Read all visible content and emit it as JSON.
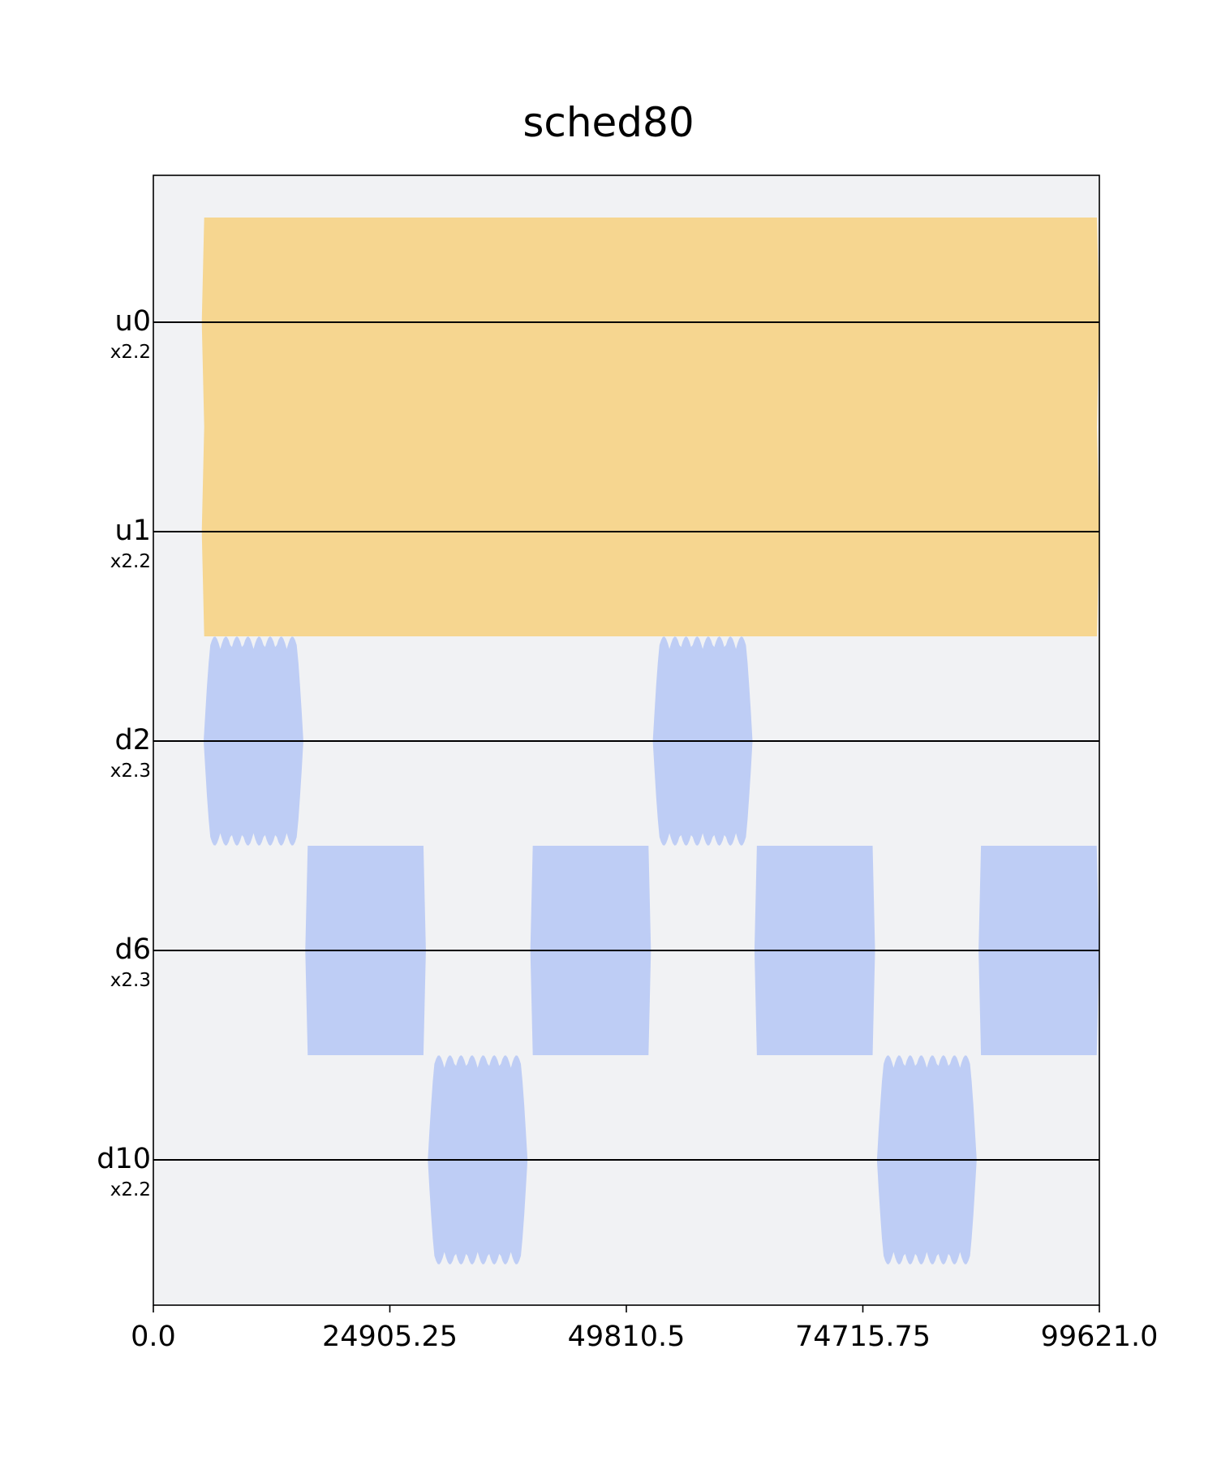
{
  "chart_data": {
    "type": "pulse_schedule",
    "title": "sched80",
    "xlim": [
      0.0,
      99621.0
    ],
    "x_ticks": [
      "0.0",
      "24905.25",
      "49810.5",
      "74715.75",
      "99621.0"
    ],
    "channels": [
      {
        "name": "u0",
        "scale": "x2.2",
        "kind": "control"
      },
      {
        "name": "u1",
        "scale": "x2.2",
        "kind": "control"
      },
      {
        "name": "d2",
        "scale": "x2.3",
        "kind": "drive"
      },
      {
        "name": "d6",
        "scale": "x2.3",
        "kind": "drive"
      },
      {
        "name": "d10",
        "scale": "x2.2",
        "kind": "drive"
      }
    ],
    "pulses": [
      {
        "channel": "u0",
        "start": 5100,
        "end": 99621,
        "shape": "flat",
        "amplitude": 1.0
      },
      {
        "channel": "u1",
        "start": 5100,
        "end": 99621,
        "shape": "flat",
        "amplitude": 1.0
      },
      {
        "channel": "d2",
        "start": 5300,
        "end": 15800,
        "shape": "oscillating",
        "amplitude": 1.0
      },
      {
        "channel": "d2",
        "start": 52600,
        "end": 63100,
        "shape": "oscillating",
        "amplitude": 1.0
      },
      {
        "channel": "d6",
        "start": 16000,
        "end": 28700,
        "shape": "flat",
        "amplitude": 1.0
      },
      {
        "channel": "d6",
        "start": 39700,
        "end": 52400,
        "shape": "flat",
        "amplitude": 1.0
      },
      {
        "channel": "d6",
        "start": 63300,
        "end": 76000,
        "shape": "flat",
        "amplitude": 1.0
      },
      {
        "channel": "d6",
        "start": 86900,
        "end": 99600,
        "shape": "flat",
        "amplitude": 1.0
      },
      {
        "channel": "d10",
        "start": 28900,
        "end": 39400,
        "shape": "oscillating",
        "amplitude": 1.0
      },
      {
        "channel": "d10",
        "start": 76200,
        "end": 86700,
        "shape": "oscillating",
        "amplitude": 1.0
      }
    ],
    "colors": {
      "control": "#f5d48a",
      "drive": "#b8c9f5",
      "background": "#f1f2f4",
      "baseline": "#000000"
    },
    "grid": false
  }
}
